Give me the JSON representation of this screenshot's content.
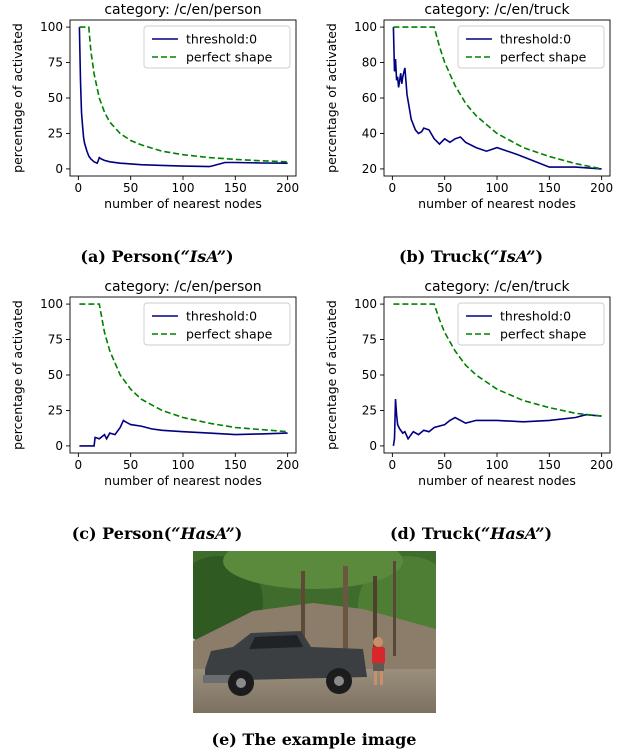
{
  "chart_data": [
    {
      "type": "line",
      "title": "category: /c/en/person",
      "xlabel": "number of nearest nodes",
      "ylabel": "percentage of activated",
      "xlim": [
        -8,
        208
      ],
      "ylim": [
        -5,
        105
      ],
      "xticks": [
        0,
        50,
        100,
        150,
        200
      ],
      "yticks": [
        0,
        25,
        50,
        75,
        100
      ],
      "legend_position": "top-right",
      "series": [
        {
          "name": "threshold:0",
          "color": "#000080",
          "style": "solid",
          "x": [
            1,
            2,
            3,
            4,
            5,
            6,
            8,
            10,
            12,
            15,
            18,
            19,
            20,
            22,
            25,
            30,
            40,
            50,
            60,
            80,
            100,
            120,
            125,
            130,
            140,
            150,
            175,
            200
          ],
          "y": [
            100,
            62,
            40,
            30,
            22,
            18,
            13,
            9,
            7,
            5,
            4,
            6,
            8,
            7,
            6,
            5,
            4,
            3.5,
            3,
            2.5,
            2,
            1.8,
            1.6,
            2.5,
            4.5,
            4.5,
            4.2,
            4
          ]
        },
        {
          "name": "perfect shape",
          "color": "#008000",
          "style": "dashed",
          "x": [
            1,
            10,
            10.5,
            12,
            15,
            20,
            25,
            30,
            40,
            50,
            60,
            80,
            100,
            125,
            150,
            175,
            200
          ],
          "y": [
            100,
            100,
            95,
            83,
            67,
            50,
            40,
            33,
            25,
            20,
            17,
            12.5,
            10,
            8,
            6.7,
            5.7,
            5
          ]
        }
      ]
    },
    {
      "type": "line",
      "title": "category: /c/en/truck",
      "xlabel": "number of nearest nodes",
      "ylabel": "percentage of activated",
      "xlim": [
        -8,
        208
      ],
      "ylim": [
        16,
        104
      ],
      "xticks": [
        0,
        50,
        100,
        150,
        200
      ],
      "yticks": [
        20,
        40,
        60,
        80,
        100
      ],
      "legend_position": "top-right",
      "series": [
        {
          "name": "threshold:0",
          "color": "#000080",
          "style": "solid",
          "x": [
            1,
            2,
            3,
            4,
            5,
            6,
            7,
            8,
            9,
            10,
            12,
            14,
            16,
            18,
            20,
            22,
            25,
            28,
            30,
            35,
            40,
            45,
            50,
            55,
            60,
            65,
            70,
            80,
            90,
            100,
            120,
            150,
            175,
            200
          ],
          "y": [
            100,
            75,
            82,
            70,
            72,
            66,
            70,
            74,
            68,
            72,
            77,
            62,
            55,
            48,
            45,
            42,
            40,
            41,
            43,
            42,
            37,
            34,
            37,
            35,
            37,
            38,
            35,
            32,
            30,
            32,
            28,
            21,
            21,
            20
          ]
        },
        {
          "name": "perfect shape",
          "color": "#008000",
          "style": "dashed",
          "x": [
            1,
            40,
            45,
            50,
            60,
            70,
            80,
            100,
            125,
            150,
            175,
            200
          ],
          "y": [
            100,
            100,
            89,
            80,
            67,
            57,
            50,
            40,
            32,
            27,
            23,
            20
          ]
        }
      ]
    },
    {
      "type": "line",
      "title": "category: /c/en/person",
      "xlabel": "number of nearest nodes",
      "ylabel": "percentage of activated",
      "xlim": [
        -8,
        208
      ],
      "ylim": [
        -5,
        105
      ],
      "xticks": [
        0,
        50,
        100,
        150,
        200
      ],
      "yticks": [
        0,
        25,
        50,
        75,
        100
      ],
      "legend_position": "top-right",
      "series": [
        {
          "name": "threshold:0",
          "color": "#000080",
          "style": "solid",
          "x": [
            1,
            15,
            16,
            20,
            25,
            27,
            30,
            35,
            40,
            43,
            45,
            50,
            60,
            70,
            80,
            100,
            125,
            150,
            175,
            200
          ],
          "y": [
            0,
            0,
            6,
            5,
            8,
            5,
            9,
            8,
            13,
            18,
            17,
            15,
            14,
            12,
            11,
            10,
            9,
            8,
            8.5,
            9
          ]
        },
        {
          "name": "perfect shape",
          "color": "#008000",
          "style": "dashed",
          "x": [
            1,
            20,
            25,
            30,
            40,
            50,
            60,
            80,
            100,
            125,
            150,
            175,
            200
          ],
          "y": [
            100,
            100,
            80,
            67,
            50,
            40,
            33,
            25,
            20,
            16,
            13,
            11.5,
            10
          ]
        }
      ]
    },
    {
      "type": "line",
      "title": "category: /c/en/truck",
      "xlabel": "number of nearest nodes",
      "ylabel": "percentage of activated",
      "xlim": [
        -8,
        208
      ],
      "ylim": [
        -5,
        105
      ],
      "xticks": [
        0,
        50,
        100,
        150,
        200
      ],
      "yticks": [
        0,
        25,
        50,
        75,
        100
      ],
      "legend_position": "top-right",
      "series": [
        {
          "name": "threshold:0",
          "color": "#000080",
          "style": "solid",
          "x": [
            1,
            2,
            3,
            4,
            5,
            7,
            10,
            12,
            15,
            20,
            25,
            30,
            35,
            40,
            50,
            55,
            60,
            70,
            80,
            100,
            125,
            150,
            175,
            185,
            200
          ],
          "y": [
            0,
            5,
            33,
            22,
            15,
            12,
            9,
            10,
            5,
            10,
            8,
            11,
            10,
            13,
            15,
            18,
            20,
            16,
            18,
            18,
            17,
            18,
            20,
            22,
            21
          ]
        },
        {
          "name": "perfect shape",
          "color": "#008000",
          "style": "dashed",
          "x": [
            1,
            40,
            45,
            50,
            60,
            70,
            80,
            100,
            125,
            150,
            175,
            200
          ],
          "y": [
            100,
            100,
            89,
            80,
            67,
            57,
            50,
            40,
            32,
            27,
            23,
            21
          ]
        }
      ]
    }
  ],
  "captions": {
    "a": {
      "prefix": "(a) Person(",
      "quote": "“IsA”",
      "suffix": ")"
    },
    "b": {
      "prefix": "(b) Truck(",
      "quote": "“IsA”",
      "suffix": ")"
    },
    "c": {
      "prefix": "(c) Person(",
      "quote": "“HasA”",
      "suffix": ")"
    },
    "d": {
      "prefix": "(d) Truck(",
      "quote": "“HasA”",
      "suffix": ")"
    },
    "e": "(e) The example image"
  }
}
